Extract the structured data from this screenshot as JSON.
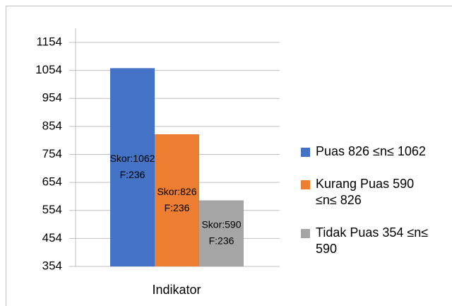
{
  "chart_data": {
    "type": "bar",
    "categories": [
      "Indikator"
    ],
    "series": [
      {
        "name": "Puas 826 ≤n≤ 1062",
        "color": "#4472c4",
        "values": [
          1062
        ],
        "value_labels": [
          "Skor:1062\nF:236"
        ]
      },
      {
        "name": "Kurang Puas 590 ≤n≤ 826",
        "color": "#ed7d31",
        "values": [
          826
        ],
        "value_labels": [
          "Skor:826\nF:236"
        ]
      },
      {
        "name": "Tidak Puas 354 ≤n≤ 590",
        "color": "#a5a5a5",
        "values": [
          590
        ],
        "value_labels": [
          "Skor:590\nF:236"
        ]
      }
    ],
    "ylim": [
      354,
      1154
    ],
    "yticks": [
      354,
      454,
      554,
      654,
      754,
      854,
      954,
      1054,
      1154
    ],
    "grid": true,
    "legend": "right"
  }
}
